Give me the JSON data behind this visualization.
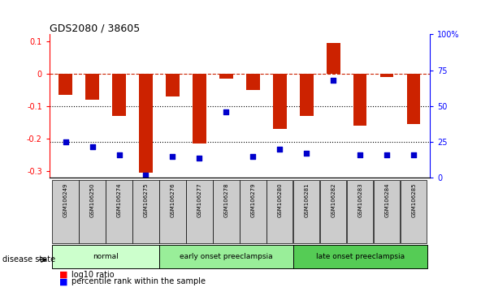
{
  "title": "GDS2080 / 38605",
  "samples": [
    "GSM106249",
    "GSM106250",
    "GSM106274",
    "GSM106275",
    "GSM106276",
    "GSM106277",
    "GSM106278",
    "GSM106279",
    "GSM106280",
    "GSM106281",
    "GSM106282",
    "GSM106283",
    "GSM106284",
    "GSM106285"
  ],
  "log10_ratio": [
    -0.065,
    -0.08,
    -0.13,
    -0.305,
    -0.07,
    -0.215,
    -0.015,
    -0.05,
    -0.17,
    -0.13,
    0.095,
    -0.16,
    -0.01,
    -0.155
  ],
  "percentile_rank": [
    25,
    22,
    16,
    2,
    15,
    14,
    46,
    15,
    20,
    17,
    68,
    16,
    16,
    16
  ],
  "groups": [
    {
      "label": "normal",
      "start": 0,
      "end": 4,
      "color": "#ccffcc"
    },
    {
      "label": "early onset preeclampsia",
      "start": 4,
      "end": 9,
      "color": "#99ee99"
    },
    {
      "label": "late onset preeclampsia",
      "start": 9,
      "end": 14,
      "color": "#55cc55"
    }
  ],
  "bar_color": "#cc2200",
  "dot_color": "#0000cc",
  "ylim_left": [
    -0.32,
    0.12
  ],
  "ylim_right": [
    0,
    100
  ],
  "left_ticks": [
    -0.3,
    -0.2,
    -0.1,
    0,
    0.1
  ],
  "right_ticks": [
    0,
    25,
    50,
    75,
    100
  ],
  "right_tick_labels": [
    "0",
    "25",
    "50",
    "75",
    "100%"
  ],
  "hline_zero_color": "#cc2200",
  "dot_lines": [
    50,
    25
  ],
  "bar_width": 0.5,
  "dot_size": 18
}
